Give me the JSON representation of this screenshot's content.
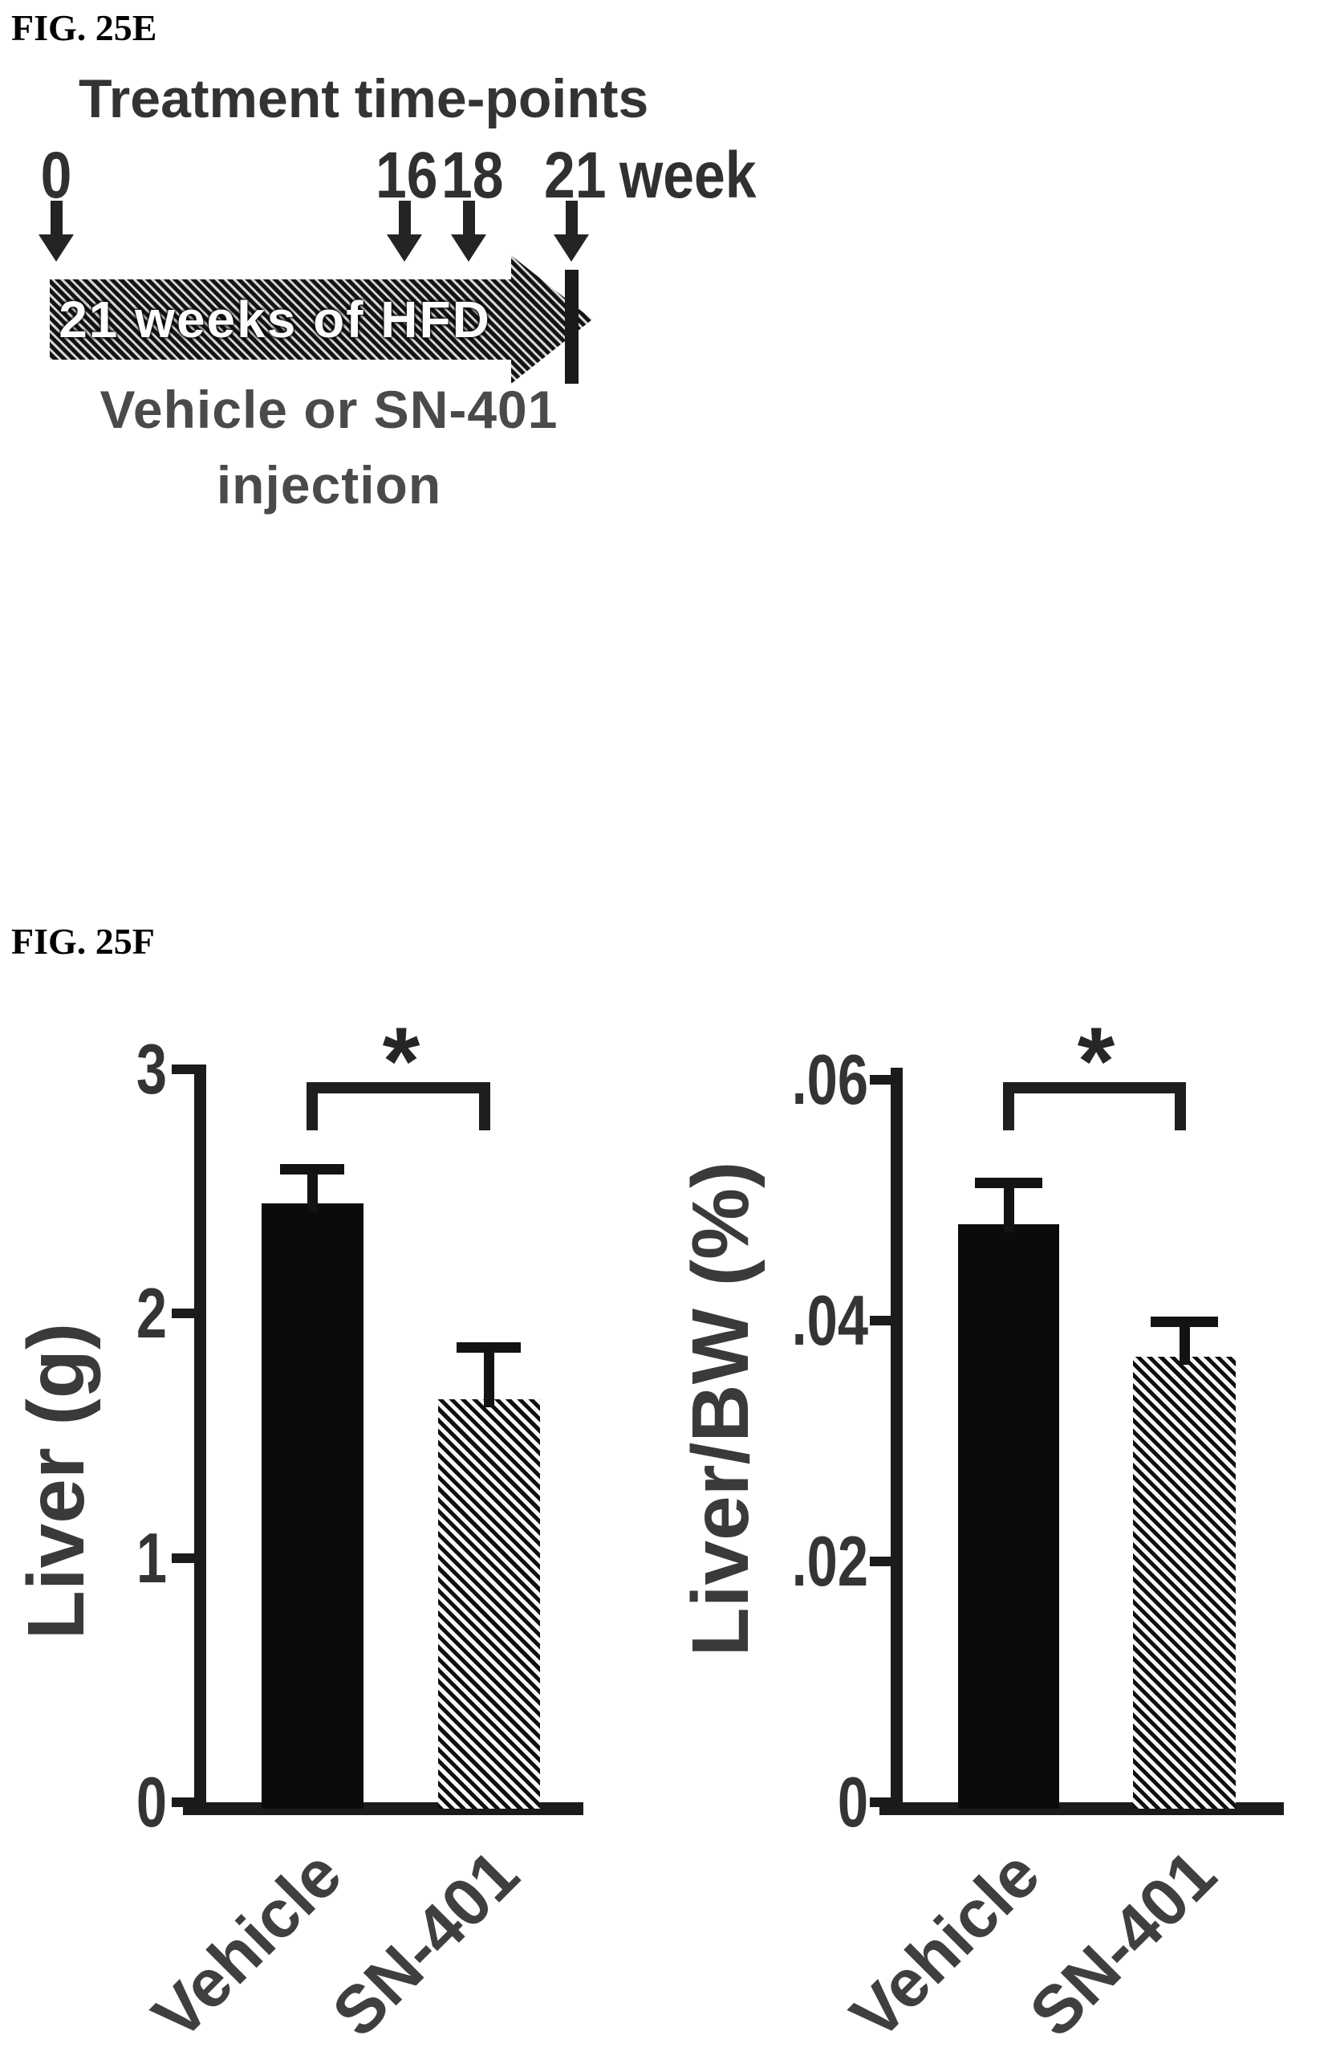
{
  "figure_e": {
    "label": "FIG. 25E",
    "title": "Treatment time-points",
    "timepoints": [
      "0",
      "16",
      "18",
      "21"
    ],
    "week_label": "week",
    "hfd_arrow_text": "21 weeks of HFD",
    "caption_line1": "Vehicle or SN-401",
    "caption_line2": "injection"
  },
  "figure_f": {
    "label": "FIG. 25F"
  },
  "chart_data": [
    {
      "type": "bar",
      "title": "",
      "ylabel": "Liver (g)",
      "xlabel": "",
      "categories": [
        "Vehicle",
        "SN-401"
      ],
      "values": [
        2.45,
        1.65
      ],
      "errors": [
        0.12,
        0.19
      ],
      "ylim": [
        0,
        3
      ],
      "yticks": [
        {
          "label": "0",
          "value": 0
        },
        {
          "label": "1",
          "value": 1
        },
        {
          "label": "2",
          "value": 2
        },
        {
          "label": "3",
          "value": 3
        }
      ],
      "bar_styles": [
        "solid-black",
        "diagonal-hatch"
      ],
      "significance": "*",
      "grid": false,
      "legend": "none"
    },
    {
      "type": "bar",
      "title": "",
      "ylabel": "Liver/BW (%)",
      "xlabel": "",
      "categories": [
        "Vehicle",
        "SN-401"
      ],
      "values": [
        0.048,
        0.037
      ],
      "errors": [
        0.003,
        0.0025
      ],
      "ylim": [
        0,
        0.06
      ],
      "yticks": [
        {
          "label": "0",
          "value": 0
        },
        {
          "label": ".02",
          "value": 0.02
        },
        {
          "label": ".04",
          "value": 0.04
        },
        {
          "label": ".06",
          "value": 0.06
        }
      ],
      "bar_styles": [
        "solid-black",
        "diagonal-hatch"
      ],
      "significance": "*",
      "grid": false,
      "legend": "none"
    }
  ],
  "colors": {
    "ink": "#1a1a1a",
    "text_gray": "#3a3a3a",
    "background": "#ffffff"
  }
}
